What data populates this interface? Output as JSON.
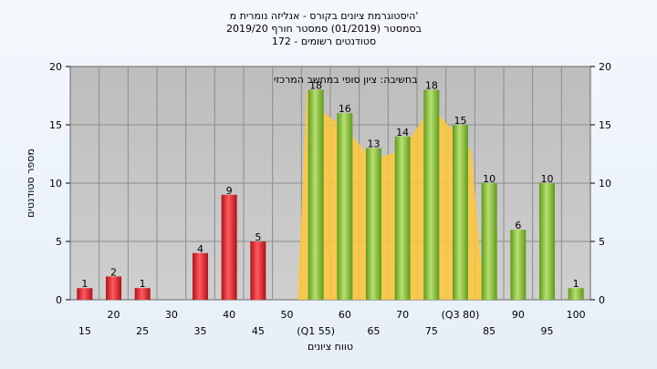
{
  "chart_data": {
    "type": "bar",
    "title_lines": [
      "היסטוגרמת ציונים בקורס - אנליזה נומרית מ'",
      "בסמסטר (01/2019) סמסטר חורף 2019/20",
      "172 - סטודנטים רשומים"
    ],
    "xlabel": "טווח ציונים",
    "ylabel": "מספר סטודנטים",
    "ylim": [
      0,
      20
    ],
    "yticks": [
      0,
      5,
      10,
      15,
      20
    ],
    "x_ticks_upper": [
      "20",
      "30",
      "40",
      "50",
      "60",
      "70",
      "(Q3 80)",
      "90",
      "100"
    ],
    "x_ticks_lower": [
      "15",
      "25",
      "35",
      "45",
      "(Q1 55)",
      "65",
      "75",
      "85",
      "95"
    ],
    "annotation": "בחשיבה: ציון סופי במחשב המרכזי",
    "categories": [
      15,
      20,
      25,
      30,
      35,
      40,
      45,
      50,
      55,
      60,
      65,
      70,
      75,
      80,
      85,
      90,
      95,
      100
    ],
    "values": [
      1,
      2,
      1,
      0,
      4,
      9,
      5,
      0,
      18,
      16,
      13,
      14,
      18,
      15,
      10,
      6,
      10,
      1
    ],
    "fail_threshold": 50,
    "colors": {
      "fail": "#e8323a",
      "pass": "#8cc63f",
      "band": "#ffc83a",
      "plot_bg": "#c0c0c0"
    },
    "grid": true
  }
}
